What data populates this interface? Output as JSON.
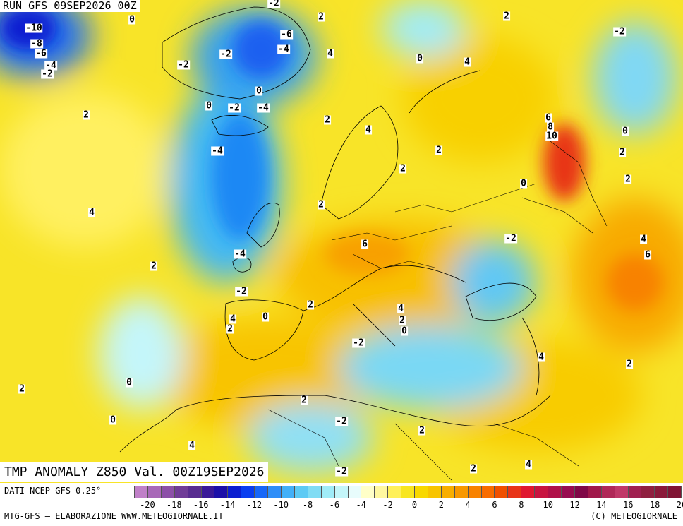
{
  "header": {
    "run_title": "RUN GFS 09SEP2026 00Z"
  },
  "map": {
    "title": "TMP ANOMALY Z850 Val. 00Z19SEP2026",
    "contour_labels": [
      "-2",
      "2",
      "0",
      "-10",
      "-8",
      "-6",
      "-4",
      "-2",
      "-6",
      "-4",
      "-2",
      "-2",
      "0",
      "4",
      "0",
      "4",
      "2",
      "-2",
      "2",
      "0",
      "-2",
      "-4",
      "2",
      "4",
      "6",
      "8",
      "10",
      "0",
      "-4",
      "2",
      "2",
      "0",
      "2",
      "2",
      "2",
      "4",
      "-4",
      "6",
      "-2",
      "2",
      "2",
      "4",
      "6",
      "-2",
      "0",
      "4",
      "2",
      "4",
      "2",
      "0",
      "-2",
      "4",
      "2",
      "2",
      "0",
      "2",
      "0",
      "-2",
      "2",
      "4",
      "-2",
      "2",
      "4"
    ]
  },
  "legend": {
    "source_note": "DATI NCEP GFS 0.25°",
    "credit_left": "MTG-GFS — ELABORAZIONE WWW.METEOGIORNALE.IT",
    "credit_right": "(C) METEOGIORNALE",
    "tick_labels": [
      "-20",
      "-18",
      "-16",
      "-14",
      "-12",
      "-10",
      "-8",
      "-6",
      "-4",
      "-2",
      "0",
      "2",
      "4",
      "6",
      "8",
      "10",
      "12",
      "14",
      "16",
      "18",
      "20"
    ],
    "colors": [
      "#c080c8",
      "#a868b8",
      "#8c50a8",
      "#703c98",
      "#582c90",
      "#3a1a98",
      "#1c10a8",
      "#0b1fd0",
      "#0a3ef0",
      "#1767f8",
      "#2e8ef8",
      "#42b0f8",
      "#5ccaf4",
      "#80dcf4",
      "#a0ecf8",
      "#c4f6fa",
      "#e8fcfc",
      "#ffffc8",
      "#fff8a0",
      "#fff05a",
      "#f8e620",
      "#f8d800",
      "#f8c400",
      "#f8ae00",
      "#f89800",
      "#f88200",
      "#f86c00",
      "#f05000",
      "#e83418",
      "#e01830",
      "#c81440",
      "#b01048",
      "#980c50",
      "#800848",
      "#a0184a",
      "#b02858",
      "#c03868",
      "#a02050",
      "#902040",
      "#8a1a3a",
      "#801434"
    ]
  }
}
